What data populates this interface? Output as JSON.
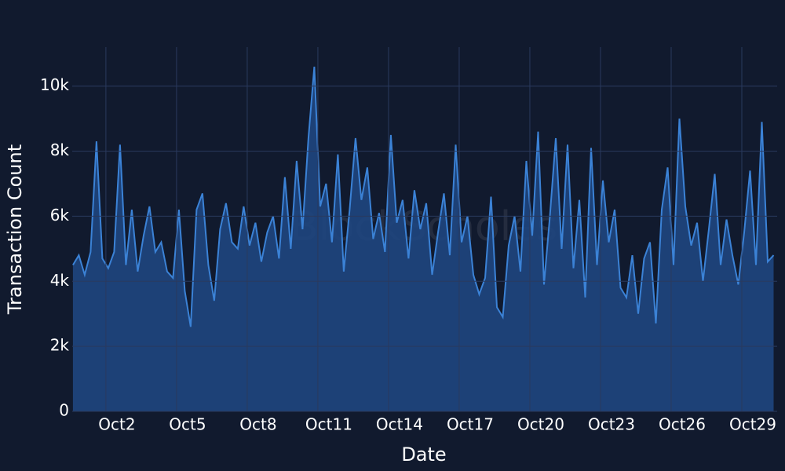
{
  "chart_data": {
    "type": "area",
    "x_label": "Date",
    "y_label": "Transaction Count",
    "watermark": "BlockScholes",
    "line_color": "#3b82d6",
    "fill_color": "#1f4680",
    "grid": true,
    "xlim": [
      0.57,
      30.5
    ],
    "ylim": [
      0,
      11200
    ],
    "xticks": [
      {
        "value": 2,
        "label": "Oct2"
      },
      {
        "value": 5,
        "label": "Oct5"
      },
      {
        "value": 8,
        "label": "Oct8"
      },
      {
        "value": 11,
        "label": "Oct11"
      },
      {
        "value": 14,
        "label": "Oct14"
      },
      {
        "value": 17,
        "label": "Oct17"
      },
      {
        "value": 20,
        "label": "Oct20"
      },
      {
        "value": 23,
        "label": "Oct23"
      },
      {
        "value": 26,
        "label": "Oct26"
      },
      {
        "value": 29,
        "label": "Oct29"
      }
    ],
    "yticks": [
      0,
      {
        "value": 2000,
        "label": "2k"
      },
      {
        "value": 4000,
        "label": "4k"
      },
      {
        "value": 6000,
        "label": "6k"
      },
      {
        "value": 8000,
        "label": "8k"
      },
      {
        "value": 10000,
        "label": "10k"
      }
    ],
    "x": [
      0.6,
      0.85,
      1.1,
      1.35,
      1.6,
      1.85,
      2.1,
      2.35,
      2.6,
      2.85,
      3.1,
      3.35,
      3.6,
      3.85,
      4.1,
      4.35,
      4.6,
      4.85,
      5.1,
      5.35,
      5.6,
      5.85,
      6.1,
      6.35,
      6.6,
      6.85,
      7.1,
      7.35,
      7.6,
      7.85,
      8.1,
      8.35,
      8.6,
      8.85,
      9.1,
      9.35,
      9.6,
      9.85,
      10.1,
      10.35,
      10.6,
      10.85,
      11.1,
      11.35,
      11.6,
      11.85,
      12.1,
      12.35,
      12.6,
      12.85,
      13.1,
      13.35,
      13.6,
      13.85,
      14.1,
      14.35,
      14.6,
      14.85,
      15.1,
      15.35,
      15.6,
      15.85,
      16.1,
      16.35,
      16.6,
      16.85,
      17.1,
      17.35,
      17.6,
      17.85,
      18.1,
      18.35,
      18.6,
      18.85,
      19.1,
      19.35,
      19.6,
      19.85,
      20.1,
      20.35,
      20.6,
      20.85,
      21.1,
      21.35,
      21.6,
      21.85,
      22.1,
      22.35,
      22.6,
      22.85,
      23.1,
      23.35,
      23.6,
      23.85,
      24.1,
      24.35,
      24.6,
      24.85,
      25.1,
      25.35,
      25.6,
      25.85,
      26.1,
      26.35,
      26.6,
      26.85,
      27.1,
      27.35,
      27.6,
      27.85,
      28.1,
      28.35,
      28.6,
      28.85,
      29.1,
      29.35,
      29.6,
      29.85,
      30.1,
      30.35
    ],
    "values": [
      4500,
      4800,
      4200,
      4900,
      8300,
      4700,
      4400,
      4900,
      8200,
      4500,
      6200,
      4300,
      5400,
      6300,
      4900,
      5200,
      4300,
      4100,
      6200,
      3700,
      2600,
      6200,
      6700,
      4500,
      3400,
      5600,
      6400,
      5200,
      5000,
      6300,
      5100,
      5800,
      4600,
      5500,
      6000,
      4700,
      7200,
      5000,
      7700,
      5600,
      8400,
      10600,
      6300,
      7000,
      5200,
      7900,
      4300,
      6200,
      8400,
      6500,
      7500,
      5300,
      6100,
      4900,
      8500,
      5800,
      6500,
      4700,
      6800,
      5600,
      6400,
      4200,
      5500,
      6700,
      4800,
      8200,
      5200,
      6000,
      4200,
      3600,
      4100,
      6600,
      3200,
      2900,
      5100,
      6000,
      4300,
      7700,
      5400,
      8600,
      3900,
      6000,
      8400,
      5000,
      8200,
      4400,
      6500,
      3500,
      8100,
      4500,
      7100,
      5200,
      6200,
      3800,
      3500,
      4800,
      3000,
      4700,
      5200,
      2700,
      6200,
      7500,
      4500,
      9000,
      6300,
      5100,
      5800,
      4000,
      5600,
      7300,
      4500,
      5900,
      4800,
      3900,
      5500,
      7400,
      4500,
      8900,
      4600,
      4800
    ]
  }
}
